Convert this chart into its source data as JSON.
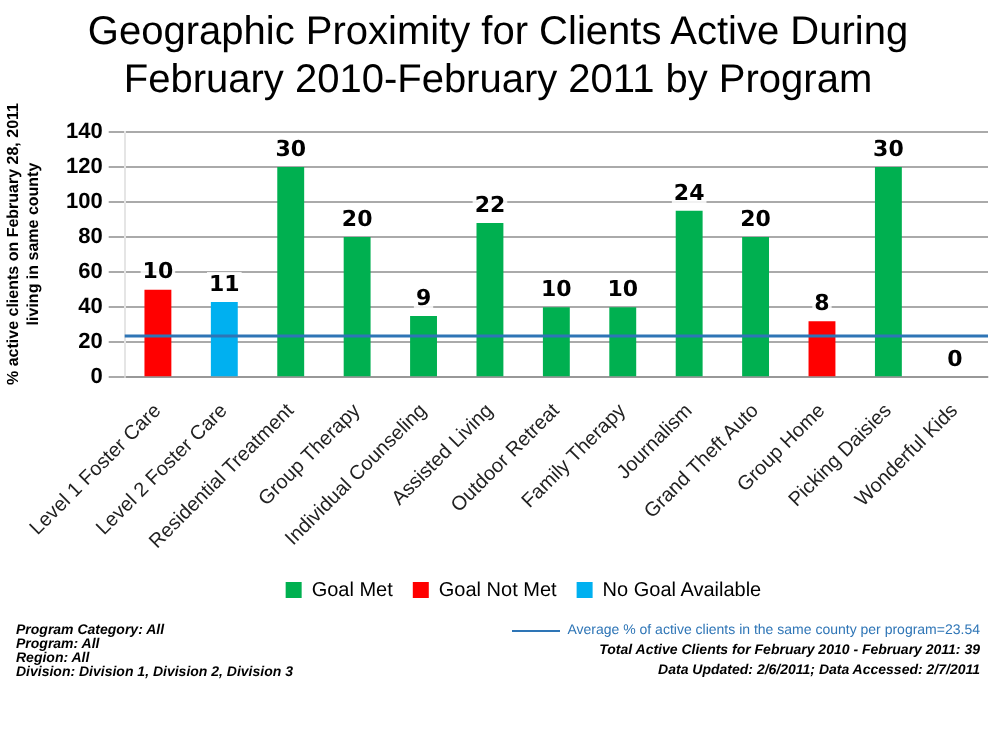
{
  "chart_data": {
    "type": "bar",
    "title": "Geographic Proximity for Clients Active During February 2010-February 2011 by Program",
    "ylabel": "% active clients on February 28, 2011 living in same county",
    "categories": [
      "Level 1 Foster Care",
      "Level 2 Foster Care",
      "Residential Treatment",
      "Group Therapy",
      "Individual Counseling",
      "Assisted Living",
      "Outdoor Retreat",
      "Family Therapy",
      "Journalism",
      "Grand Theft Auto",
      "Group Home",
      "Picking Daisies",
      "Wonderful Kids"
    ],
    "series": [
      {
        "name": "Goal Met",
        "color": "#00b050",
        "values": [
          null,
          null,
          120,
          80,
          35,
          88,
          40,
          40,
          95,
          80,
          null,
          120,
          0
        ]
      },
      {
        "name": "Goal Not Met",
        "color": "#ff0000",
        "values": [
          50,
          null,
          null,
          null,
          null,
          null,
          null,
          null,
          null,
          null,
          32,
          null,
          null
        ]
      },
      {
        "name": "No Goal Available",
        "color": "#00b0f0",
        "values": [
          null,
          43,
          null,
          null,
          null,
          null,
          null,
          null,
          null,
          null,
          null,
          null,
          null
        ]
      }
    ],
    "ylim": [
      0,
      140
    ],
    "yticks": [
      0,
      20,
      40,
      60,
      80,
      100,
      120,
      140
    ],
    "grid": "y",
    "legend": "bottom",
    "ref_lines": [
      {
        "axis": "y",
        "value": 23.54,
        "label": "Average % of active clients in the same county per program=23.54",
        "color": "#2e75b6"
      }
    ],
    "annotations": [
      "Program Category: All",
      "Program: All",
      "Region: All",
      "Division: Division 1, Division 2, Division 3",
      "Total Active Clients for February 2010 - February 2011: 39",
      "Data Updated: 2/6/2011; Data Accessed: 2/7/2011",
      {
        "text": "10",
        "x": "Level 1 Foster Care",
        "y": 50
      },
      {
        "text": "11",
        "x": "Level 2 Foster Care",
        "y": 43
      },
      {
        "text": "30",
        "x": "Residential Treatment",
        "y": 120
      },
      {
        "text": "20",
        "x": "Group Therapy",
        "y": 80
      },
      {
        "text": "9",
        "x": "Individual Counseling",
        "y": 35
      },
      {
        "text": "22",
        "x": "Assisted Living",
        "y": 88
      },
      {
        "text": "10",
        "x": "Outdoor Retreat",
        "y": 40
      },
      {
        "text": "10",
        "x": "Family Therapy",
        "y": 40
      },
      {
        "text": "24",
        "x": "Journalism",
        "y": 95
      },
      {
        "text": "20",
        "x": "Grand Theft Auto",
        "y": 80
      },
      {
        "text": "8",
        "x": "Group Home",
        "y": 32
      },
      {
        "text": "30",
        "x": "Picking Daisies",
        "y": 120
      },
      {
        "text": "0",
        "x": "Wonderful Kids",
        "y": 0
      }
    ]
  }
}
